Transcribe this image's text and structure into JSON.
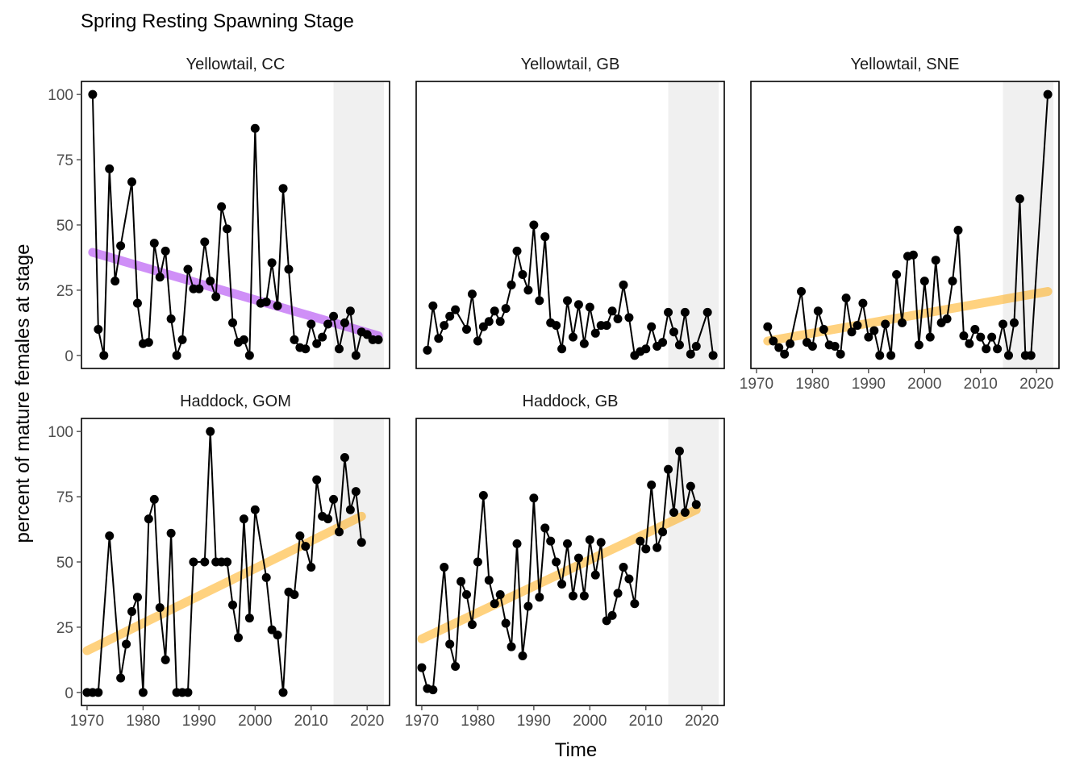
{
  "title": "Spring Resting Spawning Stage",
  "xlabel": "Time",
  "ylabel": "percent of mature females at stage",
  "colors": {
    "line": "#000000",
    "point": "#000000",
    "trend_decrease": "#a020f0",
    "trend_increase": "#ffa500",
    "shade": "#f0f0f0",
    "frame": "#000000",
    "tick": "#4d4d4d"
  },
  "chart_data": {
    "type": "line",
    "layout": "facet_wrap 3 columns",
    "xlim": [
      1969,
      2024
    ],
    "ylim": [
      -5,
      105
    ],
    "x_ticks": [
      1970,
      1980,
      1990,
      2000,
      2010,
      2020
    ],
    "y_ticks": [
      0,
      25,
      50,
      75,
      100
    ],
    "shaded_range": [
      2014,
      2023
    ],
    "panels": [
      {
        "name": "Yellowtail, CC",
        "trend": {
          "color": "#a020f0",
          "x": [
            1971,
            2022
          ],
          "y": [
            39.5,
            7.5
          ]
        },
        "x": [
          1971,
          1972,
          1973,
          1974,
          1975,
          1976,
          1978,
          1979,
          1980,
          1981,
          1982,
          1983,
          1984,
          1985,
          1986,
          1987,
          1988,
          1989,
          1990,
          1991,
          1992,
          1993,
          1994,
          1995,
          1996,
          1997,
          1998,
          1999,
          2000,
          2001,
          2002,
          2003,
          2004,
          2005,
          2006,
          2007,
          2008,
          2009,
          2010,
          2011,
          2012,
          2013,
          2014,
          2015,
          2016,
          2017,
          2018,
          2019,
          2020,
          2021,
          2022
        ],
        "values": [
          100,
          10,
          0,
          71.5,
          28.5,
          42,
          66.5,
          20,
          4.5,
          5,
          43,
          30,
          40,
          14,
          0,
          6,
          33,
          25.5,
          25.5,
          43.5,
          28.5,
          22.5,
          57,
          48.5,
          12.5,
          5,
          6,
          0,
          87,
          20,
          20.5,
          35.5,
          19,
          64,
          33,
          6,
          3,
          2.5,
          12,
          4.5,
          7,
          12,
          15,
          2.5,
          12.5,
          17,
          0,
          9,
          8,
          6,
          6
        ]
      },
      {
        "name": "Yellowtail, GB",
        "trend": null,
        "x": [
          1971,
          1972,
          1973,
          1974,
          1975,
          1976,
          1978,
          1979,
          1980,
          1981,
          1982,
          1983,
          1984,
          1985,
          1986,
          1987,
          1988,
          1989,
          1990,
          1991,
          1992,
          1993,
          1994,
          1995,
          1996,
          1997,
          1998,
          1999,
          2000,
          2001,
          2002,
          2003,
          2004,
          2005,
          2006,
          2007,
          2008,
          2009,
          2010,
          2011,
          2012,
          2013,
          2014,
          2015,
          2016,
          2017,
          2018,
          2019,
          2021,
          2022
        ],
        "values": [
          2,
          19,
          6.5,
          11.5,
          15,
          17.5,
          10,
          23.5,
          5.5,
          11,
          13,
          17,
          13,
          18,
          27,
          40,
          31,
          25,
          50,
          21,
          45.5,
          12.5,
          11.5,
          2.5,
          21,
          7,
          19.5,
          4.5,
          18.5,
          8.5,
          11.5,
          11.5,
          17,
          14,
          27,
          14.5,
          0,
          1.5,
          2.5,
          11,
          3.5,
          5,
          16.5,
          9,
          4,
          16.5,
          0.5,
          3.5,
          16.5,
          0
        ]
      },
      {
        "name": "Yellowtail, SNE",
        "trend": {
          "color": "#ffa500",
          "x": [
            1972,
            2022
          ],
          "y": [
            5.5,
            24.5
          ]
        },
        "x": [
          1972,
          1973,
          1974,
          1975,
          1976,
          1978,
          1979,
          1980,
          1981,
          1982,
          1983,
          1984,
          1985,
          1986,
          1987,
          1988,
          1989,
          1990,
          1991,
          1992,
          1993,
          1994,
          1995,
          1996,
          1997,
          1998,
          1999,
          2000,
          2001,
          2002,
          2003,
          2004,
          2005,
          2006,
          2007,
          2008,
          2009,
          2010,
          2011,
          2012,
          2013,
          2014,
          2015,
          2016,
          2017,
          2018,
          2019,
          2022
        ],
        "values": [
          11,
          5.5,
          3,
          0.5,
          4.5,
          24.5,
          5,
          3.5,
          17,
          10,
          4,
          3.5,
          0.5,
          22,
          9,
          11.5,
          20,
          7,
          9.5,
          0,
          12,
          0,
          31,
          12.5,
          38,
          38.5,
          4,
          28.5,
          7,
          36.5,
          12.5,
          14,
          28.5,
          48,
          7.5,
          4.5,
          10,
          7,
          2.5,
          7,
          2.5,
          12,
          0,
          12.5,
          60,
          0,
          0,
          100
        ]
      },
      {
        "name": "Haddock, GOM",
        "trend": {
          "color": "#ffa500",
          "x": [
            1970,
            2019
          ],
          "y": [
            16,
            67.5
          ]
        },
        "x": [
          1970,
          1971,
          1972,
          1974,
          1976,
          1977,
          1978,
          1979,
          1980,
          1981,
          1982,
          1983,
          1984,
          1985,
          1986,
          1987,
          1988,
          1989,
          1991,
          1992,
          1993,
          1994,
          1995,
          1996,
          1997,
          1998,
          1999,
          2000,
          2002,
          2003,
          2004,
          2005,
          2006,
          2007,
          2008,
          2009,
          2010,
          2011,
          2012,
          2013,
          2014,
          2015,
          2016,
          2017,
          2018,
          2019
        ],
        "values": [
          0,
          0,
          0,
          60,
          5.5,
          18.5,
          31,
          36.5,
          0,
          66.5,
          74,
          32.5,
          12.5,
          61,
          0,
          0,
          0,
          50,
          50,
          100,
          50,
          50,
          50,
          33.5,
          21,
          66.5,
          28.5,
          70,
          44,
          24,
          22,
          0,
          38.5,
          37.5,
          60,
          56,
          48,
          81.5,
          67.5,
          66.5,
          74,
          61.5,
          90,
          70,
          77,
          57.5
        ]
      },
      {
        "name": "Haddock, GB",
        "trend": {
          "color": "#ffa500",
          "x": [
            1970,
            2019
          ],
          "y": [
            20.5,
            70
          ]
        },
        "x": [
          1970,
          1971,
          1972,
          1974,
          1975,
          1976,
          1977,
          1978,
          1979,
          1980,
          1981,
          1982,
          1983,
          1984,
          1985,
          1986,
          1987,
          1988,
          1989,
          1990,
          1991,
          1992,
          1993,
          1994,
          1995,
          1996,
          1997,
          1998,
          1999,
          2000,
          2001,
          2002,
          2003,
          2004,
          2005,
          2006,
          2007,
          2008,
          2009,
          2010,
          2011,
          2012,
          2013,
          2014,
          2015,
          2016,
          2017,
          2018,
          2019
        ],
        "values": [
          9.5,
          1.5,
          1,
          48,
          18.5,
          10,
          42.5,
          37.5,
          26,
          50,
          75.5,
          43,
          34,
          37.5,
          26.5,
          17.5,
          57,
          14,
          33,
          74.5,
          36.5,
          63,
          58,
          50,
          41.5,
          57,
          37,
          51.5,
          37,
          58.5,
          45,
          57.5,
          27.5,
          29.5,
          38,
          48,
          43.5,
          34,
          58,
          55,
          79.5,
          55.5,
          61.5,
          85.5,
          69,
          92.5,
          69,
          79,
          72
        ]
      }
    ]
  }
}
